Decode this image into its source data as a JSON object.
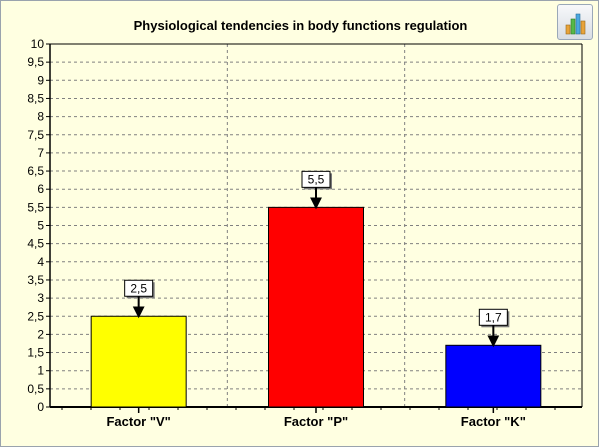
{
  "toolbar": {
    "chart_button_icon": "bar-chart-icon"
  },
  "chart_data": {
    "type": "bar",
    "title": "Physiological tendencies in body functions regulation",
    "categories": [
      "Factor \"V\"",
      "Factor \"P\"",
      "Factor \"K\""
    ],
    "values": [
      2.5,
      5.5,
      1.7
    ],
    "value_labels": [
      "2,5",
      "5,5",
      "1,7"
    ],
    "colors": [
      "#ffff00",
      "#ff0000",
      "#0000ff"
    ],
    "ylim": [
      0,
      10
    ],
    "yticks": [
      "0",
      "0,5",
      "1",
      "1,5",
      "2",
      "2,5",
      "3",
      "3,5",
      "4",
      "4,5",
      "5",
      "5,5",
      "6",
      "6,5",
      "7",
      "7,5",
      "8",
      "8,5",
      "9",
      "9,5",
      "10"
    ],
    "grid": true,
    "legend": "none",
    "xlabel": "",
    "ylabel": ""
  },
  "colors": {
    "plot_background": "#ffffe1",
    "grid": "#808080"
  }
}
